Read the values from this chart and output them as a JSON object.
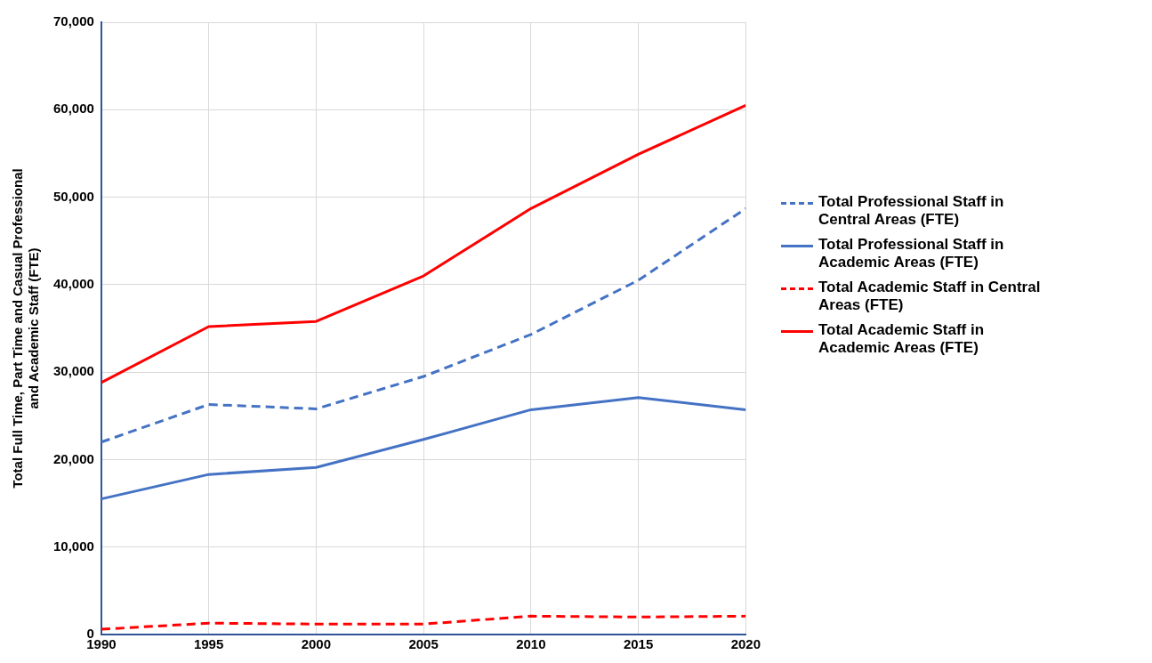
{
  "chart_data": {
    "type": "line",
    "ylabel": "Total Full Time, Part Time and Casual Professional and Academic Staff (FTE)",
    "x": [
      1990,
      1995,
      2000,
      2005,
      2010,
      2015,
      2020
    ],
    "xlim": [
      1990,
      2020
    ],
    "xticks": [
      1990,
      1995,
      2000,
      2005,
      2010,
      2015,
      2020
    ],
    "ylim": [
      0,
      70000
    ],
    "yticks": [
      {
        "value": 0,
        "label": "0"
      },
      {
        "value": 10000,
        "label": "10,000"
      },
      {
        "value": 20000,
        "label": "20,000"
      },
      {
        "value": 30000,
        "label": "30,000"
      },
      {
        "value": 40000,
        "label": "40,000"
      },
      {
        "value": 50000,
        "label": "50,000"
      },
      {
        "value": 60000,
        "label": "60,000"
      },
      {
        "value": 70000,
        "label": "70,000"
      }
    ],
    "grid": true,
    "legend": "right",
    "marker": "none",
    "series": [
      {
        "name": "Total Professional Staff  in Central Areas (FTE)",
        "color": "#4472c4",
        "line_style": "dashed",
        "values": [
          22000,
          26300,
          25800,
          29500,
          34300,
          40500,
          48700
        ]
      },
      {
        "name": "Total Professional Staff  in Academic Areas (FTE)",
        "color": "#4472c4",
        "line_style": "solid",
        "values": [
          15500,
          18300,
          19100,
          22300,
          25700,
          27100,
          25700
        ]
      },
      {
        "name": "Total Academic Staff  in Central Areas (FTE)",
        "color": "#ff0000",
        "line_style": "dashed",
        "values": [
          600,
          1300,
          1200,
          1200,
          2100,
          2000,
          2100
        ]
      },
      {
        "name": "Total Academic Staff in  Academic Areas (FTE)",
        "color": "#ff0000",
        "line_style": "solid",
        "values": [
          28800,
          35200,
          35800,
          41000,
          48700,
          54900,
          60500
        ]
      }
    ]
  }
}
